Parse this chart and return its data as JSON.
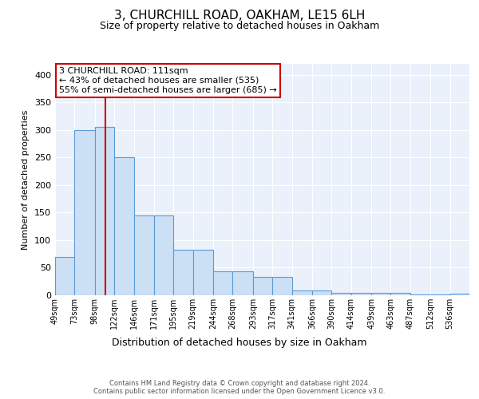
{
  "title": "3, CHURCHILL ROAD, OAKHAM, LE15 6LH",
  "subtitle": "Size of property relative to detached houses in Oakham",
  "xlabel": "Distribution of detached houses by size in Oakham",
  "ylabel": "Number of detached properties",
  "bin_edges": [
    49,
    73,
    98,
    122,
    146,
    171,
    195,
    219,
    244,
    268,
    293,
    317,
    341,
    366,
    390,
    414,
    439,
    463,
    487,
    512,
    536,
    560
  ],
  "heights": [
    70,
    300,
    305,
    250,
    145,
    145,
    82,
    82,
    44,
    44,
    33,
    33,
    8,
    8,
    5,
    5,
    5,
    5,
    2,
    2,
    3
  ],
  "tick_labels": [
    "49sqm",
    "73sqm",
    "98sqm",
    "122sqm",
    "146sqm",
    "171sqm",
    "195sqm",
    "219sqm",
    "244sqm",
    "268sqm",
    "293sqm",
    "317sqm",
    "341sqm",
    "366sqm",
    "390sqm",
    "414sqm",
    "439sqm",
    "463sqm",
    "487sqm",
    "512sqm",
    "536sqm"
  ],
  "bar_color": "#cce0f5",
  "bar_edge_color": "#5b9bd5",
  "property_line_x": 111,
  "property_line_color": "#cc0000",
  "annotation_text": "3 CHURCHILL ROAD: 111sqm\n← 43% of detached houses are smaller (535)\n55% of semi-detached houses are larger (685) →",
  "annotation_box_color": "#ffffff",
  "annotation_box_edge": "#cc0000",
  "ylim": [
    0,
    420
  ],
  "yticks": [
    0,
    50,
    100,
    150,
    200,
    250,
    300,
    350,
    400
  ],
  "background_color": "#eaf1fb",
  "grid_color": "#ffffff",
  "footer_text": "Contains HM Land Registry data © Crown copyright and database right 2024.\nContains public sector information licensed under the Open Government Licence v3.0.",
  "title_fontsize": 11,
  "subtitle_fontsize": 9,
  "xlabel_fontsize": 9,
  "ylabel_fontsize": 8,
  "tick_fontsize": 7,
  "annotation_fontsize": 8,
  "footer_fontsize": 6
}
